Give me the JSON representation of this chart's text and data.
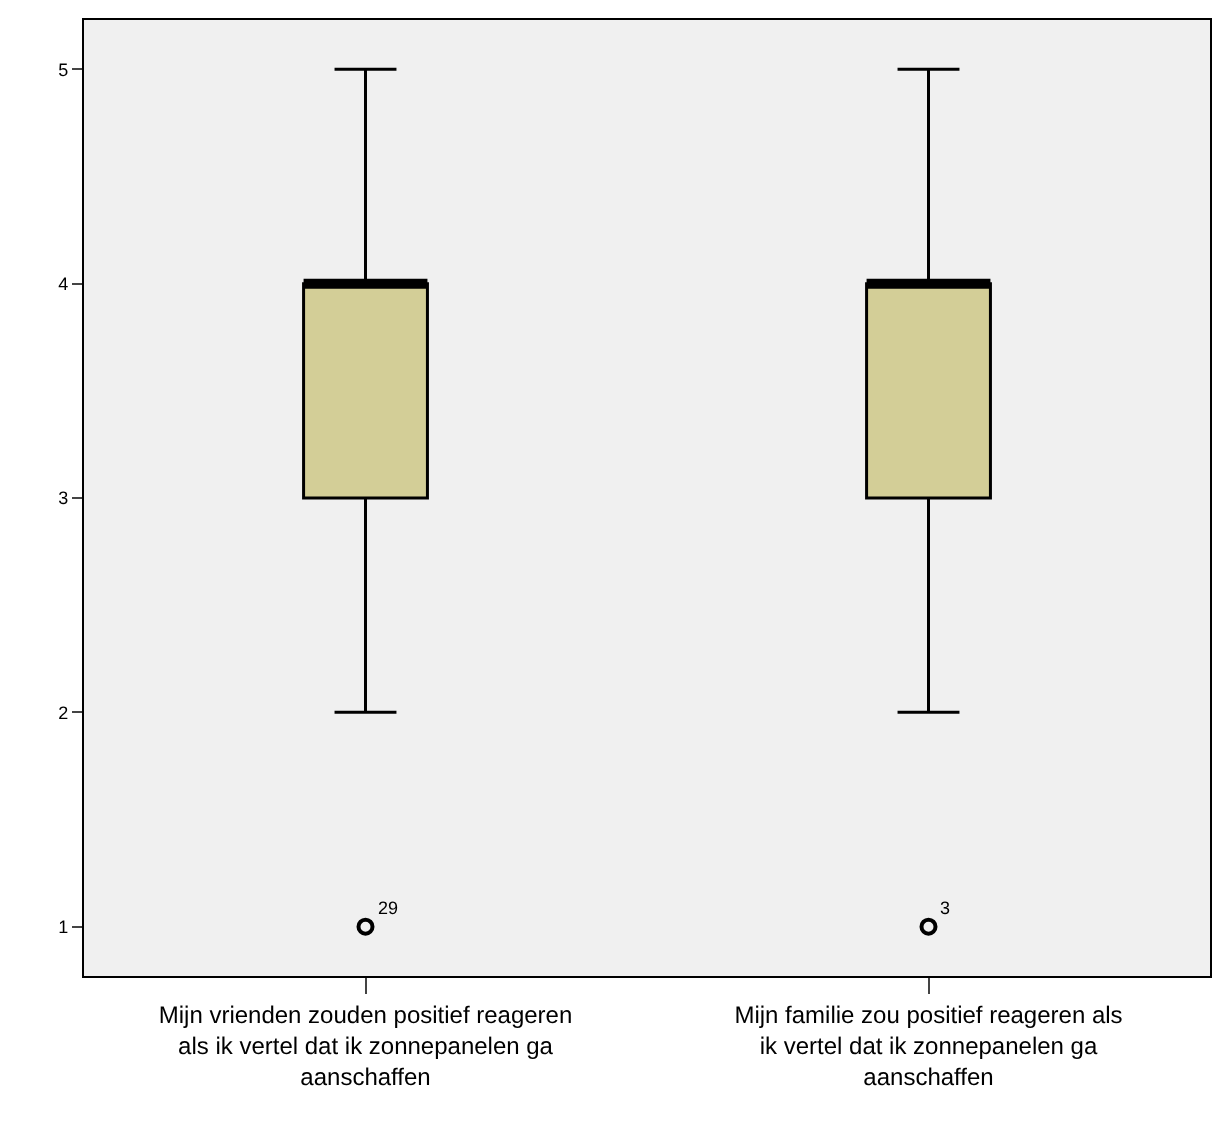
{
  "chart_data": {
    "type": "box",
    "categories": [
      "Mijn vrienden zouden positief reageren als ik vertel dat ik zonnepanelen ga aanschaffen",
      "Mijn familie zou positief reageren als ik vertel dat ik zonnepanelen ga aanschaffen"
    ],
    "boxes": [
      {
        "low": 2,
        "q1": 3,
        "median": 4,
        "q3": 4,
        "high": 5,
        "outliers": [
          1
        ]
      },
      {
        "low": 2,
        "q1": 3,
        "median": 4,
        "q3": 4,
        "high": 5,
        "outliers": [
          1
        ]
      }
    ],
    "color": "#d3ce97",
    "ylim": [
      0.77,
      5.23
    ],
    "yticks": [
      1,
      2,
      3,
      4,
      5
    ],
    "annotations": [
      "29",
      "3"
    ]
  }
}
